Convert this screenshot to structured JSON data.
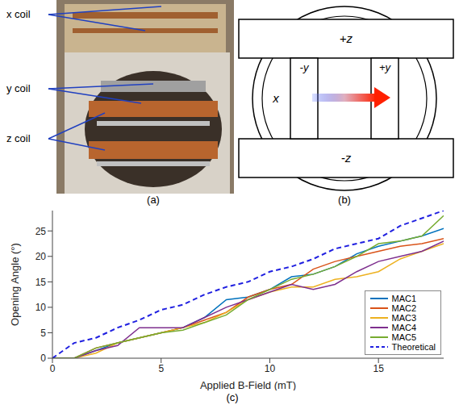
{
  "panel_labels": [
    "(a)",
    "(b)",
    "(c)"
  ],
  "photo": {
    "labels": [
      "x coil",
      "y coil",
      "z coil"
    ]
  },
  "diagram": {
    "labels": {
      "top": "+z",
      "bottom": "-z",
      "axis": "x",
      "left_coil": "-y",
      "right_coil": "+y"
    }
  },
  "chart_data": {
    "type": "line",
    "x_label": "Applied B-Field (mT)",
    "y_label": "Opening Angle (°)",
    "x": [
      0,
      1,
      2,
      3,
      4,
      5,
      6,
      7,
      8,
      9,
      10,
      11,
      12,
      13,
      14,
      15,
      16,
      17,
      18
    ],
    "xlim": [
      0,
      18
    ],
    "xticks": [
      0,
      5,
      10,
      15
    ],
    "ylim": [
      0,
      29
    ],
    "yticks": [
      0,
      5,
      10,
      15,
      20,
      25
    ],
    "legend": "lower right",
    "series": [
      {
        "name": "MAC1",
        "color": "#0072bd",
        "line_style": "solid",
        "values": [
          0,
          0,
          1.5,
          3,
          4,
          5,
          6,
          8,
          11.5,
          12,
          13.5,
          16,
          16.5,
          18,
          20.5,
          22,
          23,
          24,
          25.5
        ]
      },
      {
        "name": "MAC2",
        "color": "#d95319",
        "line_style": "solid",
        "values": [
          0,
          0,
          2,
          3,
          4,
          5,
          6,
          7.5,
          9,
          12,
          13.5,
          14.5,
          17.5,
          19,
          20,
          21,
          22,
          22.5,
          23.5
        ]
      },
      {
        "name": "MAC3",
        "color": "#edb120",
        "line_style": "solid",
        "values": [
          0,
          0,
          1,
          3,
          4,
          5,
          6,
          7,
          9,
          11.5,
          13,
          14,
          14,
          15.5,
          16,
          17,
          19.5,
          21,
          22.5
        ]
      },
      {
        "name": "MAC4",
        "color": "#7e2f8e",
        "line_style": "solid",
        "values": [
          0,
          0,
          1.5,
          2.5,
          6,
          6,
          6,
          8,
          10,
          11.5,
          13,
          14.5,
          13.5,
          14.5,
          17,
          19,
          20,
          21,
          23
        ]
      },
      {
        "name": "MAC5",
        "color": "#77ac30",
        "line_style": "solid",
        "values": [
          0,
          0,
          2,
          3,
          4,
          5,
          5.5,
          7,
          8.5,
          11.5,
          13.5,
          15.5,
          16.5,
          18,
          20,
          22.5,
          23,
          24,
          28
        ]
      },
      {
        "name": "Theoretical",
        "color": "#2020e0",
        "line_style": "dashed",
        "values": [
          0,
          3,
          4,
          6,
          7.5,
          9.5,
          10.5,
          12.5,
          14,
          15,
          17,
          18,
          19.5,
          21.5,
          22.5,
          23.5,
          26,
          27.5,
          29
        ]
      }
    ]
  }
}
